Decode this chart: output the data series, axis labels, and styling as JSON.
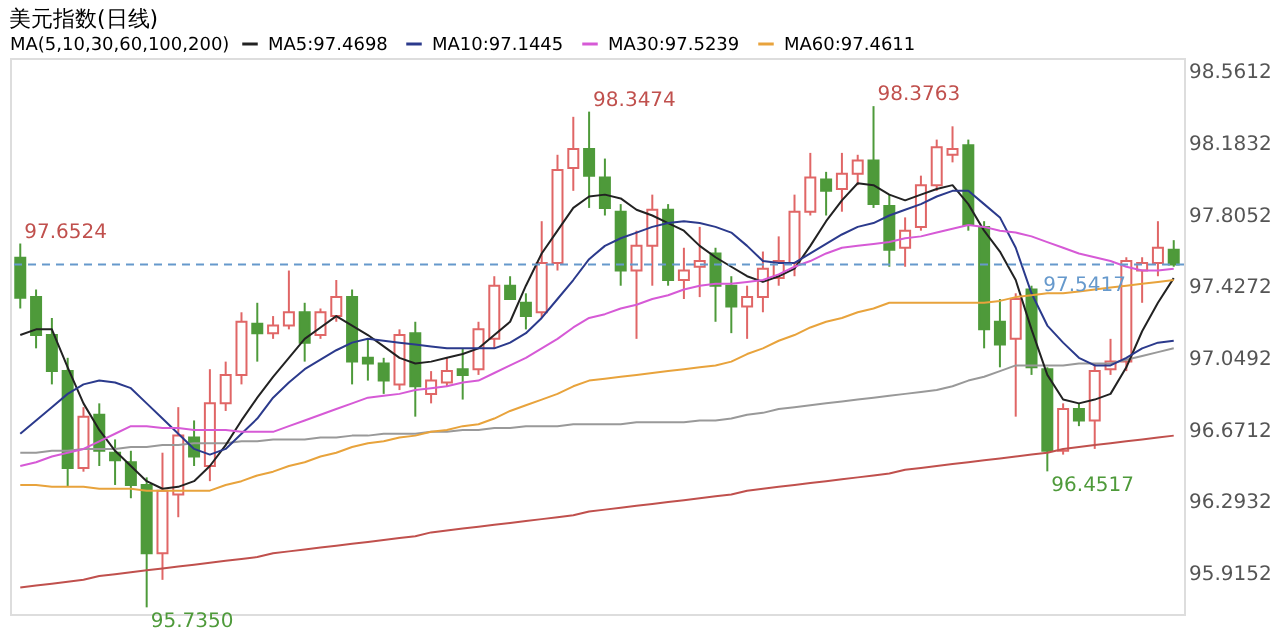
{
  "chart_data": {
    "type": "candlestick",
    "title": "美元指数(日线)",
    "legend_title": "MA(5,10,30,60,100,200)",
    "legend": "top",
    "tick_labels": "y",
    "grid": false,
    "categories": [
      null,
      null,
      null,
      null,
      null,
      null,
      null,
      null,
      null,
      null,
      null,
      null,
      null,
      null,
      null,
      null,
      null,
      null,
      null,
      null,
      null,
      null,
      null,
      null,
      null,
      null,
      null,
      null,
      null,
      null,
      null,
      null,
      null,
      null,
      null,
      null,
      null,
      null,
      null,
      null,
      null,
      null,
      null,
      null,
      null,
      null,
      null,
      null,
      null,
      null,
      null,
      null,
      null,
      null,
      null,
      null,
      null,
      null,
      null,
      null,
      null,
      null,
      null,
      null,
      null,
      null,
      null,
      null,
      null,
      null,
      null,
      null,
      null,
      null
    ],
    "ohlc": [
      [
        97.577,
        97.6524,
        97.31,
        97.367
      ],
      [
        97.37,
        97.41,
        97.1,
        97.17
      ],
      [
        97.17,
        97.26,
        96.91,
        96.98
      ],
      [
        96.98,
        97.05,
        96.37,
        96.47
      ],
      [
        96.47,
        96.79,
        96.45,
        96.74
      ],
      [
        96.75,
        96.81,
        96.48,
        96.56
      ],
      [
        96.55,
        96.62,
        96.38,
        96.51
      ],
      [
        96.5,
        96.56,
        96.31,
        96.38
      ],
      [
        96.38,
        96.42,
        95.735,
        96.02
      ],
      [
        96.02,
        96.55,
        95.88,
        96.35
      ],
      [
        96.33,
        96.79,
        96.21,
        96.64
      ],
      [
        96.63,
        96.72,
        96.48,
        96.53
      ],
      [
        96.48,
        96.99,
        96.4,
        96.81
      ],
      [
        96.81,
        97.03,
        96.77,
        96.96
      ],
      [
        96.96,
        97.29,
        96.91,
        97.24
      ],
      [
        97.23,
        97.34,
        97.03,
        97.18
      ],
      [
        97.18,
        97.27,
        97.15,
        97.22
      ],
      [
        97.22,
        97.51,
        97.2,
        97.29
      ],
      [
        97.29,
        97.34,
        97.03,
        97.13
      ],
      [
        97.17,
        97.31,
        97.15,
        97.29
      ],
      [
        97.27,
        97.46,
        97.24,
        97.37
      ],
      [
        97.37,
        97.41,
        96.91,
        97.03
      ],
      [
        97.05,
        97.15,
        96.93,
        97.02
      ],
      [
        97.02,
        97.05,
        96.86,
        96.93
      ],
      [
        96.91,
        97.2,
        96.88,
        97.17
      ],
      [
        97.18,
        97.24,
        96.74,
        96.9
      ],
      [
        96.86,
        96.98,
        96.81,
        96.93
      ],
      [
        96.92,
        97.05,
        96.9,
        96.98
      ],
      [
        96.99,
        97.1,
        96.83,
        96.96
      ],
      [
        96.99,
        97.24,
        96.96,
        97.2
      ],
      [
        97.15,
        97.48,
        97.1,
        97.43
      ],
      [
        97.43,
        97.48,
        97.36,
        97.36
      ],
      [
        97.34,
        97.39,
        97.2,
        97.27
      ],
      [
        97.29,
        97.77,
        97.26,
        97.55
      ],
      [
        97.55,
        98.12,
        97.51,
        98.04
      ],
      [
        98.05,
        98.32,
        97.93,
        98.15
      ],
      [
        98.15,
        98.3474,
        97.84,
        98.01
      ],
      [
        98.0,
        98.1,
        97.8,
        97.84
      ],
      [
        97.82,
        97.86,
        97.43,
        97.51
      ],
      [
        97.51,
        97.72,
        97.15,
        97.64
      ],
      [
        97.64,
        97.91,
        97.43,
        97.83
      ],
      [
        97.83,
        97.86,
        97.43,
        97.46
      ],
      [
        97.46,
        97.63,
        97.36,
        97.51
      ],
      [
        97.53,
        97.74,
        97.37,
        97.56
      ],
      [
        97.6,
        97.63,
        97.24,
        97.43
      ],
      [
        97.43,
        97.48,
        97.18,
        97.32
      ],
      [
        97.32,
        97.43,
        97.15,
        97.37
      ],
      [
        97.37,
        97.61,
        97.29,
        97.52
      ],
      [
        97.47,
        97.69,
        97.43,
        97.56
      ],
      [
        97.55,
        97.91,
        97.48,
        97.82
      ],
      [
        97.82,
        98.13,
        97.8,
        98.0
      ],
      [
        97.99,
        98.03,
        97.8,
        97.93
      ],
      [
        97.94,
        98.13,
        97.82,
        98.02
      ],
      [
        98.02,
        98.12,
        97.96,
        98.09
      ],
      [
        98.09,
        98.3763,
        97.84,
        97.86
      ],
      [
        97.85,
        97.91,
        97.53,
        97.62
      ],
      [
        97.63,
        97.79,
        97.53,
        97.72
      ],
      [
        97.74,
        98.01,
        97.72,
        97.96
      ],
      [
        97.96,
        98.2,
        97.93,
        98.16
      ],
      [
        98.12,
        98.27,
        98.08,
        98.15
      ],
      [
        98.17,
        98.2,
        97.72,
        97.75
      ],
      [
        97.74,
        97.77,
        97.1,
        97.2
      ],
      [
        97.24,
        97.36,
        97.0,
        97.12
      ],
      [
        97.15,
        97.39,
        96.74,
        97.36
      ],
      [
        97.41,
        97.43,
        96.96,
        97.0
      ],
      [
        96.99,
        97.0,
        96.4517,
        96.56
      ],
      [
        96.56,
        96.81,
        96.54,
        96.78
      ],
      [
        96.78,
        96.81,
        96.69,
        96.72
      ],
      [
        96.72,
        97.02,
        96.57,
        96.98
      ],
      [
        96.99,
        97.15,
        96.96,
        97.03
      ],
      [
        97.03,
        97.58,
        96.98,
        97.56
      ],
      [
        97.51,
        97.58,
        97.34,
        97.55
      ],
      [
        97.55,
        97.77,
        97.48,
        97.63
      ],
      [
        97.62,
        97.67,
        97.53,
        97.5417
      ]
    ],
    "series": [
      {
        "type": "line",
        "name": "MA5:97.4698",
        "color": "#222222",
        "values": [
          97.17,
          97.2,
          97.2,
          97.0,
          96.81,
          96.67,
          96.56,
          96.48,
          96.4,
          96.36,
          96.37,
          96.4,
          96.48,
          96.59,
          96.72,
          96.84,
          96.95,
          97.05,
          97.15,
          97.21,
          97.27,
          97.22,
          97.17,
          97.11,
          97.05,
          97.02,
          97.03,
          97.05,
          97.07,
          97.1,
          97.17,
          97.24,
          97.43,
          97.6,
          97.72,
          97.84,
          97.9,
          97.91,
          97.89,
          97.83,
          97.8,
          97.76,
          97.72,
          97.64,
          97.58,
          97.53,
          97.48,
          97.45,
          97.48,
          97.52,
          97.64,
          97.77,
          97.88,
          97.97,
          97.96,
          97.91,
          97.88,
          97.91,
          97.94,
          97.96,
          97.86,
          97.72,
          97.61,
          97.46,
          97.2,
          96.96,
          96.83,
          96.81,
          96.83,
          96.86,
          97.0,
          97.19,
          97.34,
          97.47
        ]
      },
      {
        "type": "line",
        "name": "MA10:97.1445",
        "color": "#2b3a8c",
        "values": [
          96.65,
          96.72,
          96.79,
          96.86,
          96.91,
          96.93,
          96.92,
          96.89,
          96.81,
          96.73,
          96.65,
          96.57,
          96.54,
          96.57,
          96.65,
          96.73,
          96.84,
          96.92,
          96.99,
          97.04,
          97.09,
          97.13,
          97.15,
          97.14,
          97.13,
          97.12,
          97.11,
          97.1,
          97.1,
          97.1,
          97.1,
          97.13,
          97.18,
          97.26,
          97.36,
          97.46,
          97.57,
          97.64,
          97.68,
          97.71,
          97.74,
          97.76,
          97.77,
          97.76,
          97.74,
          97.71,
          97.64,
          97.56,
          97.55,
          97.55,
          97.6,
          97.65,
          97.7,
          97.74,
          97.76,
          97.8,
          97.83,
          97.86,
          97.9,
          97.93,
          97.93,
          97.86,
          97.79,
          97.63,
          97.39,
          97.22,
          97.13,
          97.05,
          97.01,
          97.01,
          97.05,
          97.1,
          97.13,
          97.14
        ]
      },
      {
        "type": "line",
        "name": "MA30:97.5239",
        "color": "#d65ad6",
        "values": [
          96.48,
          96.5,
          96.53,
          96.55,
          96.57,
          96.61,
          96.65,
          96.69,
          96.69,
          96.68,
          96.68,
          96.67,
          96.67,
          96.67,
          96.66,
          96.66,
          96.66,
          96.69,
          96.72,
          96.75,
          96.78,
          96.81,
          96.84,
          96.85,
          96.86,
          96.88,
          96.89,
          96.9,
          96.92,
          96.93,
          96.97,
          97.01,
          97.05,
          97.1,
          97.15,
          97.21,
          97.26,
          97.28,
          97.31,
          97.33,
          97.36,
          97.38,
          97.41,
          97.43,
          97.44,
          97.44,
          97.45,
          97.46,
          97.49,
          97.53,
          97.56,
          97.6,
          97.63,
          97.64,
          97.65,
          97.66,
          97.68,
          97.69,
          97.71,
          97.73,
          97.75,
          97.74,
          97.72,
          97.71,
          97.69,
          97.66,
          97.63,
          97.6,
          97.58,
          97.56,
          97.53,
          97.51,
          97.51,
          97.52
        ]
      },
      {
        "type": "line",
        "name": "MA60:97.4611",
        "color": "#e8a33c",
        "values": [
          96.38,
          96.38,
          96.37,
          96.37,
          96.37,
          96.36,
          96.36,
          96.36,
          96.35,
          96.35,
          96.35,
          96.35,
          96.35,
          96.38,
          96.4,
          96.43,
          96.45,
          96.48,
          96.5,
          96.53,
          96.55,
          96.58,
          96.6,
          96.61,
          96.63,
          96.64,
          96.66,
          96.67,
          96.69,
          96.7,
          96.73,
          96.77,
          96.8,
          96.83,
          96.86,
          96.9,
          96.93,
          96.94,
          96.95,
          96.96,
          96.97,
          96.98,
          96.99,
          97.0,
          97.01,
          97.03,
          97.07,
          97.1,
          97.14,
          97.17,
          97.21,
          97.24,
          97.26,
          97.29,
          97.31,
          97.34,
          97.34,
          97.34,
          97.34,
          97.34,
          97.34,
          97.34,
          97.35,
          97.37,
          97.38,
          97.39,
          97.39,
          97.4,
          97.41,
          97.42,
          97.43,
          97.44,
          97.45,
          97.46
        ]
      },
      {
        "type": "line",
        "color": "#999999",
        "values": [
          96.55,
          96.55,
          96.56,
          96.56,
          96.57,
          96.57,
          96.57,
          96.58,
          96.58,
          96.59,
          96.59,
          96.6,
          96.6,
          96.6,
          96.61,
          96.61,
          96.62,
          96.62,
          96.62,
          96.63,
          96.63,
          96.64,
          96.64,
          96.65,
          96.65,
          96.65,
          96.66,
          96.66,
          96.67,
          96.67,
          96.68,
          96.68,
          96.69,
          96.69,
          96.69,
          96.7,
          96.7,
          96.7,
          96.7,
          96.71,
          96.71,
          96.71,
          96.71,
          96.72,
          96.72,
          96.73,
          96.75,
          96.76,
          96.78,
          96.79,
          96.8,
          96.81,
          96.82,
          96.83,
          96.84,
          96.85,
          96.86,
          96.87,
          96.88,
          96.9,
          96.93,
          96.95,
          96.98,
          97.01,
          97.01,
          97.01,
          97.01,
          97.02,
          97.02,
          97.02,
          97.04,
          97.06,
          97.08,
          97.1
        ]
      },
      {
        "type": "line",
        "color": "#c0504d",
        "values": [
          95.84,
          95.85,
          95.86,
          95.87,
          95.88,
          95.9,
          95.91,
          95.92,
          95.93,
          95.94,
          95.95,
          95.96,
          95.97,
          95.98,
          95.99,
          96.0,
          96.02,
          96.03,
          96.04,
          96.05,
          96.06,
          96.07,
          96.08,
          96.09,
          96.1,
          96.11,
          96.13,
          96.14,
          96.15,
          96.16,
          96.17,
          96.18,
          96.19,
          96.2,
          96.21,
          96.22,
          96.24,
          96.25,
          96.26,
          96.27,
          96.28,
          96.29,
          96.3,
          96.31,
          96.32,
          96.33,
          96.35,
          96.36,
          96.37,
          96.38,
          96.39,
          96.4,
          96.41,
          96.42,
          96.43,
          96.44,
          96.46,
          96.47,
          96.48,
          96.49,
          96.5,
          96.51,
          96.52,
          96.53,
          96.54,
          96.55,
          96.57,
          96.58,
          96.59,
          96.6,
          96.61,
          96.62,
          96.63,
          96.64
        ]
      }
    ],
    "ylim": [
      95.7,
      98.63
    ],
    "yticks": [
      98.5612,
      98.1832,
      97.8052,
      97.4272,
      97.0492,
      96.6712,
      96.2932,
      95.9152
    ],
    "ref_lines": [
      {
        "axis": "y",
        "value": 97.5417,
        "label": "97.5417",
        "color": "#6699cc",
        "line_style": "dashed"
      }
    ],
    "annotations": [
      "97.6524",
      "98.3474",
      "98.3763",
      "95.7350",
      "96.4517"
    ]
  }
}
